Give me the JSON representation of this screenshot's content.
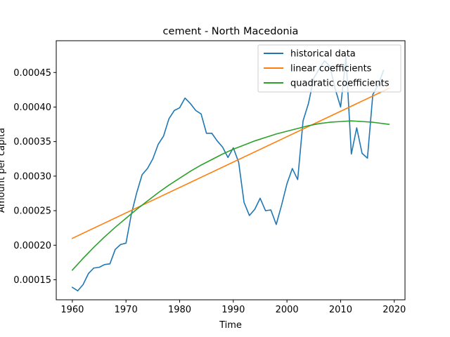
{
  "chart_data": {
    "type": "line",
    "title": "cement - North Macedonia",
    "xlabel": "Time",
    "ylabel": "Amount per capita",
    "xlim": [
      1957.0,
      2022.0
    ],
    "ylim": [
      0.000121,
      0.000496
    ],
    "x_ticks": [
      1960,
      1970,
      1980,
      1990,
      2000,
      2010,
      2020
    ],
    "y_ticks": [
      0.00015,
      0.0002,
      0.00025,
      0.0003,
      0.00035,
      0.0004,
      0.00045
    ],
    "y_tick_labels": [
      "0.00015",
      "0.00020",
      "0.00025",
      "0.00030",
      "0.00035",
      "0.00040",
      "0.00045"
    ],
    "grid": false,
    "legend_position": "top-right",
    "series": [
      {
        "name": "historical data",
        "color": "#1f77b4",
        "x": [
          1960,
          1961,
          1962,
          1963,
          1964,
          1965,
          1966,
          1967,
          1968,
          1969,
          1970,
          1971,
          1972,
          1973,
          1974,
          1975,
          1976,
          1977,
          1978,
          1979,
          1980,
          1981,
          1982,
          1983,
          1984,
          1985,
          1986,
          1987,
          1988,
          1989,
          1990,
          1991,
          1992,
          1993,
          1994,
          1995,
          1996,
          1997,
          1998,
          1999,
          2000,
          2001,
          2002,
          2003,
          2004,
          2005,
          2006,
          2007,
          2008,
          2009,
          2010,
          2011,
          2012,
          2013,
          2014,
          2015,
          2016,
          2017,
          2018
        ],
        "y": [
          0.000139,
          0.000134,
          0.000143,
          0.000159,
          0.000167,
          0.000168,
          0.000172,
          0.000173,
          0.000194,
          0.000201,
          0.000203,
          0.000245,
          0.000276,
          0.000302,
          0.000311,
          0.000325,
          0.000346,
          0.000358,
          0.000383,
          0.000395,
          0.000399,
          0.000413,
          0.000405,
          0.000395,
          0.00039,
          0.000362,
          0.000362,
          0.000351,
          0.000342,
          0.000327,
          0.000341,
          0.00032,
          0.000262,
          0.000243,
          0.000252,
          0.000268,
          0.00025,
          0.000251,
          0.00023,
          0.000258,
          0.000289,
          0.000311,
          0.000295,
          0.00038,
          0.000405,
          0.000442,
          0.000455,
          0.000467,
          0.000459,
          0.000426,
          0.0004,
          0.000472,
          0.000332,
          0.00037,
          0.000333,
          0.000326,
          0.000418,
          0.000432,
          0.000453
        ]
      },
      {
        "name": "linear coefficients",
        "color": "#ff7f0e",
        "x": [
          1960,
          2019
        ],
        "y": [
          0.00021,
          0.000427
        ]
      },
      {
        "name": "quadratic coefficients",
        "color": "#2ca02c",
        "x": [
          1960,
          1962,
          1964,
          1966,
          1968,
          1970,
          1972,
          1974,
          1976,
          1978,
          1980,
          1982,
          1984,
          1986,
          1988,
          1990,
          1992,
          1994,
          1996,
          1998,
          2000,
          2002,
          2004,
          2006,
          2008,
          2010,
          2012,
          2014,
          2016,
          2019
        ],
        "y": [
          0.000164,
          0.000181,
          0.000197,
          0.000212,
          0.000226,
          0.000239,
          0.000252,
          0.000264,
          0.000276,
          0.000287,
          0.000297,
          0.000307,
          0.000316,
          0.000324,
          0.000332,
          0.000339,
          0.000345,
          0.000351,
          0.000356,
          0.000361,
          0.000365,
          0.000369,
          0.000373,
          0.000376,
          0.000378,
          0.000379,
          0.00038,
          0.000379,
          0.000378,
          0.000375
        ]
      }
    ]
  }
}
